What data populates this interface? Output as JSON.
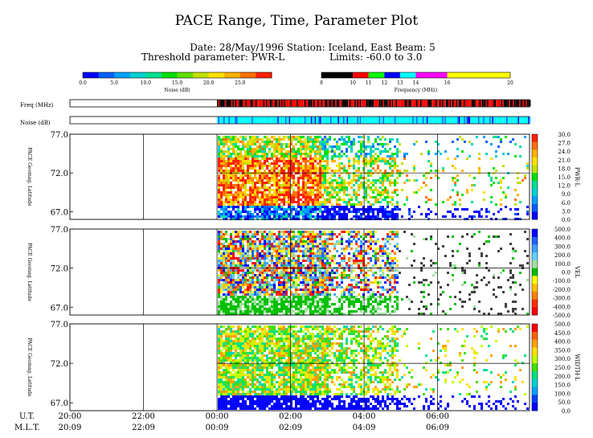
{
  "header": {
    "title": "PACE Range, Time, Parameter Plot",
    "subtitle": "Date: 28/May/1996  Station: Iceland, East  Beam: 5",
    "threshold": "Threshold parameter: PWR-L",
    "limits": "Limits: -60.0 to  3.0"
  },
  "scales": {
    "noise": {
      "label": "Noise (dB)",
      "ticks": [
        "0.0",
        "5.0",
        "10.0",
        "15.0",
        "20.0",
        "25.0"
      ],
      "colors": [
        "#0000ff",
        "#0060ff",
        "#00a0ff",
        "#00d0d0",
        "#00e090",
        "#00e000",
        "#60e000",
        "#c0e000",
        "#ffe000",
        "#ffb000",
        "#ff7000",
        "#ff2000"
      ]
    },
    "frequency": {
      "label": "Frequency (MHz)",
      "ticks": [
        "8",
        "10",
        "11",
        "12",
        "13",
        "14",
        "16",
        "20"
      ],
      "bands": [
        {
          "from": 8,
          "to": 10,
          "color": "#000000"
        },
        {
          "from": 10,
          "to": 11,
          "color": "#ff0000"
        },
        {
          "from": 11,
          "to": 12,
          "color": "#00ff00"
        },
        {
          "from": 12,
          "to": 13,
          "color": "#0000ff"
        },
        {
          "from": 13,
          "to": 14,
          "color": "#00ffff"
        },
        {
          "from": 14,
          "to": 16,
          "color": "#ff00ff"
        },
        {
          "from": 16,
          "to": 20,
          "color": "#ffff00"
        }
      ]
    }
  },
  "strips": {
    "freq_label": "Freq (MHz)",
    "noise_label": "Noise (dB)"
  },
  "panels": [
    {
      "ylabel": "PACE Geomag. Latitude",
      "param": "PWR-L",
      "ticks": [
        "77.0",
        "72.0",
        "67.0"
      ],
      "scale": [
        "30.0",
        "27.0",
        "24.0",
        "21.0",
        "18.0",
        "15.0",
        "12.0",
        "9.0",
        "6.0",
        "3.0",
        "0.0"
      ],
      "colors": [
        "#ff2000",
        "#ff7000",
        "#ffb000",
        "#ffe000",
        "#c0e000",
        "#00e000",
        "#00e090",
        "#00d0d0",
        "#00a0ff",
        "#0060ff",
        "#0000ff"
      ]
    },
    {
      "ylabel": "PACE Geomag. Latitude",
      "param": "VEL",
      "ticks": [
        "77.0",
        "72.0",
        "67.0"
      ],
      "scale": [
        "500.0",
        "400.0",
        "300.0",
        "200.0",
        "100.0",
        "0.0",
        "-100.0",
        "-200.0",
        "-300.0",
        "-400.0",
        "-500.0"
      ],
      "colors": [
        "#0000ff",
        "#2060ff",
        "#40a0ff",
        "#60d0ff",
        "#a0e0a0",
        "#00c000",
        "#ffff00",
        "#ffc000",
        "#ff8000",
        "#ff3000",
        "#ff0000"
      ]
    },
    {
      "ylabel": "PACE Geomag. Latitude",
      "param": "WIDTH-L",
      "ticks": [
        "77.0",
        "72.0",
        "67.0"
      ],
      "scale": [
        "500.0",
        "450.0",
        "400.0",
        "350.0",
        "300.0",
        "250.0",
        "200.0",
        "150.0",
        "100.0",
        "50.0",
        "0.0"
      ],
      "colors": [
        "#ff0000",
        "#ff6000",
        "#ffa000",
        "#ffe000",
        "#c0ff00",
        "#40e000",
        "#00e080",
        "#00d0d0",
        "#00a0ff",
        "#0040ff",
        "#0000ff"
      ]
    }
  ],
  "time_axis": {
    "ut_label": "U.T.",
    "mlt_label": "M.L.T.",
    "ut": [
      "20:00",
      "22:00",
      "00:00",
      "02:00",
      "04:00",
      "06:00"
    ],
    "mlt": [
      "20:09",
      "22:09",
      "00:09",
      "02:09",
      "04:09",
      "06:09"
    ]
  },
  "chart_data": {
    "type": "heatmap",
    "title": "PACE Range, Time, Parameter Plot",
    "xlabel": "U.T.",
    "ylabel": "PACE Geomag. Latitude",
    "xlim": [
      "20:00",
      "08:30"
    ],
    "ylim": [
      66,
      77
    ],
    "series": [
      {
        "name": "PWR-L",
        "range": [
          0,
          30
        ]
      },
      {
        "name": "VEL",
        "range": [
          -500,
          500
        ]
      },
      {
        "name": "WIDTH-L",
        "range": [
          0,
          500
        ]
      }
    ],
    "data_start": "00:00",
    "grid": true
  }
}
